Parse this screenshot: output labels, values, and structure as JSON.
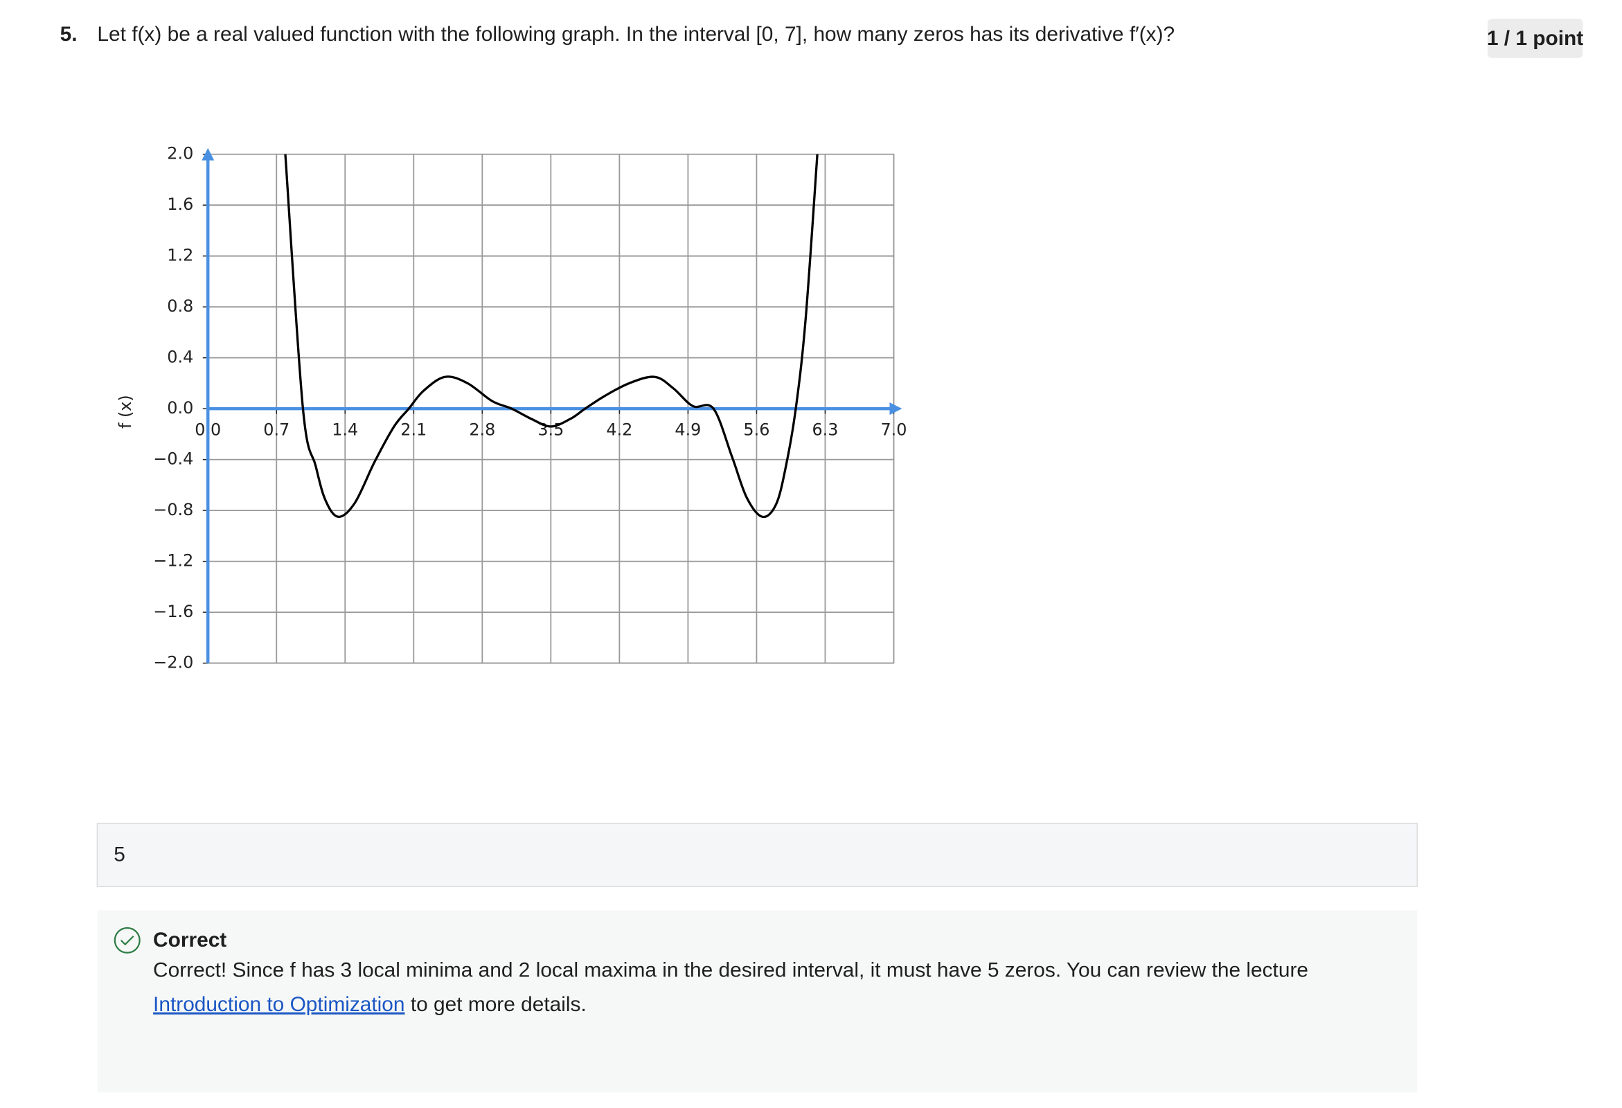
{
  "question": {
    "number": "5.",
    "text": "Let f(x) be a real valued function with the following graph. In the interval [0, 7], how many zeros has its derivative f′(x)?"
  },
  "score": "1 / 1 point",
  "chart_data": {
    "type": "line",
    "ylabel": "f (x)",
    "x": [
      0.79,
      0.97,
      1.1,
      1.2,
      1.33,
      1.5,
      1.7,
      1.9,
      2.05,
      2.2,
      2.42,
      2.65,
      2.9,
      3.1,
      3.3,
      3.5,
      3.7,
      3.85,
      4.05,
      4.3,
      4.56,
      4.75,
      4.95,
      5.16,
      5.35,
      5.5,
      5.66,
      5.8,
      5.9,
      6.0,
      6.1,
      6.22
    ],
    "values": [
      2.0,
      0.0,
      -0.45,
      -0.72,
      -0.85,
      -0.74,
      -0.42,
      -0.14,
      0.0,
      0.14,
      0.25,
      0.2,
      0.06,
      0.0,
      -0.08,
      -0.14,
      -0.08,
      0.0,
      0.1,
      0.2,
      0.25,
      0.16,
      0.02,
      0.0,
      -0.38,
      -0.7,
      -0.85,
      -0.75,
      -0.45,
      0.0,
      0.7,
      2.0
    ],
    "color": "#000000",
    "axis_color": "#4a90e2",
    "grid": true,
    "xlim": [
      0,
      7
    ],
    "ylim": [
      -2,
      2
    ],
    "xticks": [
      {
        "value": 0,
        "label": "0.0"
      },
      {
        "value": 0.7,
        "label": "0.7"
      },
      {
        "value": 1.4,
        "label": "1.4"
      },
      {
        "value": 2.1,
        "label": "2.1"
      },
      {
        "value": 2.8,
        "label": "2.8"
      },
      {
        "value": 3.5,
        "label": "3.5"
      },
      {
        "value": 4.2,
        "label": "4.2"
      },
      {
        "value": 4.9,
        "label": "4.9"
      },
      {
        "value": 5.6,
        "label": "5.6"
      },
      {
        "value": 6.3,
        "label": "6.3"
      },
      {
        "value": 7,
        "label": "7.0"
      }
    ],
    "yticks": [
      {
        "value": 2,
        "label": "2.0"
      },
      {
        "value": 1.6,
        "label": "1.6"
      },
      {
        "value": 1.2,
        "label": "1.2"
      },
      {
        "value": 0.8,
        "label": "0.8"
      },
      {
        "value": 0.4,
        "label": "0.4"
      },
      {
        "value": 0,
        "label": "0.0"
      },
      {
        "value": -0.4,
        "label": "−0.4"
      },
      {
        "value": -0.8,
        "label": "−0.8"
      },
      {
        "value": -1.2,
        "label": "−1.2"
      },
      {
        "value": -1.6,
        "label": "−1.6"
      },
      {
        "value": -2,
        "label": "−2.0"
      }
    ]
  },
  "answer": "5",
  "feedback": {
    "status": "Correct",
    "text": "Correct! Since f has 3 local minima and 2 local maxima in the desired interval, it must have 5 zeros. You can review the lecture",
    "link": "Introduction to Optimization",
    "text_after": " to get more details."
  }
}
